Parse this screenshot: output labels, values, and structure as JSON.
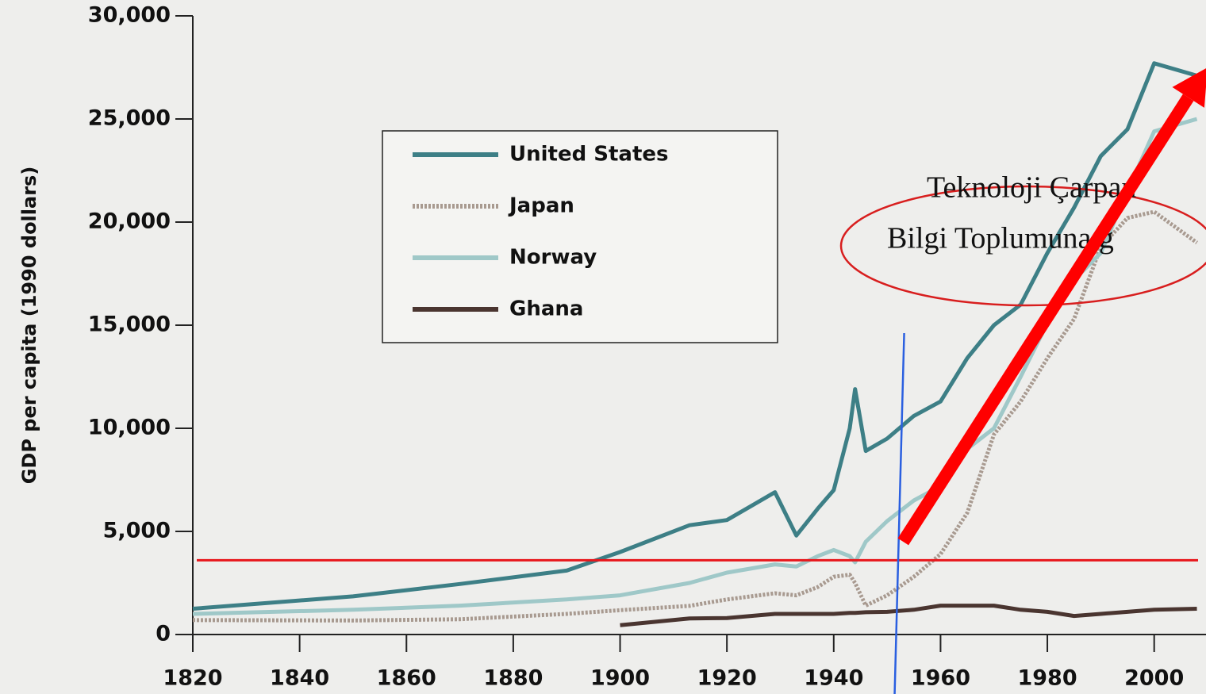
{
  "chart_data": {
    "type": "line",
    "y_label": "GDP per capita (1990 dollars)",
    "x": [
      1820,
      1850,
      1870,
      1890,
      1900,
      1913,
      1920,
      1929,
      1933,
      1937,
      1940,
      1943,
      1944,
      1946,
      1950,
      1955,
      1960,
      1965,
      1970,
      1975,
      1980,
      1985,
      1990,
      1995,
      2000,
      2008
    ],
    "series": [
      {
        "name": "United States",
        "color": "#3d7f86",
        "values": [
          1250,
          1850,
          2450,
          3100,
          4000,
          5300,
          5550,
          6900,
          4800,
          6100,
          7000,
          10000,
          11900,
          8900,
          9500,
          10600,
          11300,
          13400,
          15000,
          16000,
          18500,
          20700,
          23200,
          24500,
          27700,
          27100
        ]
      },
      {
        "name": "Japan",
        "color": "#a89a90",
        "dashed": true,
        "values": [
          700,
          680,
          740,
          1000,
          1180,
          1390,
          1700,
          2000,
          1900,
          2300,
          2800,
          2900,
          2500,
          1400,
          1900,
          2800,
          3900,
          5900,
          9700,
          11300,
          13400,
          15300,
          18800,
          20200,
          20500,
          19000
        ]
      },
      {
        "name": "Norway",
        "color": "#9fc8c8",
        "values": [
          1000,
          1200,
          1400,
          1700,
          1900,
          2500,
          3000,
          3400,
          3300,
          3800,
          4100,
          3800,
          3500,
          4500,
          5500,
          6500,
          7200,
          9000,
          10000,
          12500,
          15100,
          17200,
          18500,
          21500,
          24400,
          25000
        ]
      },
      {
        "name": "Ghana",
        "color": "#4a3530",
        "values": [
          null,
          null,
          null,
          null,
          450,
          780,
          800,
          1000,
          1000,
          1000,
          1000,
          1050,
          1050,
          1080,
          1100,
          1200,
          1400,
          1400,
          1400,
          1200,
          1100,
          900,
          1000,
          1100,
          1200,
          1250
        ]
      }
    ],
    "xlim": [
      1820,
      2010
    ],
    "xticks": [
      1820,
      1840,
      1860,
      1880,
      1900,
      1920,
      1940,
      1960,
      1980,
      2000
    ],
    "ylim": [
      0,
      30000
    ],
    "yticks": [
      0,
      {
        "value": 5000,
        "label": "5,000"
      },
      {
        "value": 10000,
        "label": "10,000"
      },
      {
        "value": 15000,
        "label": "15,000"
      },
      {
        "value": 20000,
        "label": "20,000"
      },
      {
        "value": 25000,
        "label": "25,000"
      },
      {
        "value": 30000,
        "label": "30,000"
      }
    ],
    "annotation_lines": {
      "horizontal": {
        "value": 3600,
        "color": "#e8161b"
      },
      "vertical": {
        "value": 1952,
        "color": "#2a5fe0"
      }
    },
    "arrow": {
      "from": [
        1953,
        4500
      ],
      "to": [
        2010,
        27500
      ],
      "color": "#ff0000"
    },
    "annotation_text": [
      "Teknoloji Çarpan",
      "Bilgi Toplumuna g"
    ]
  }
}
